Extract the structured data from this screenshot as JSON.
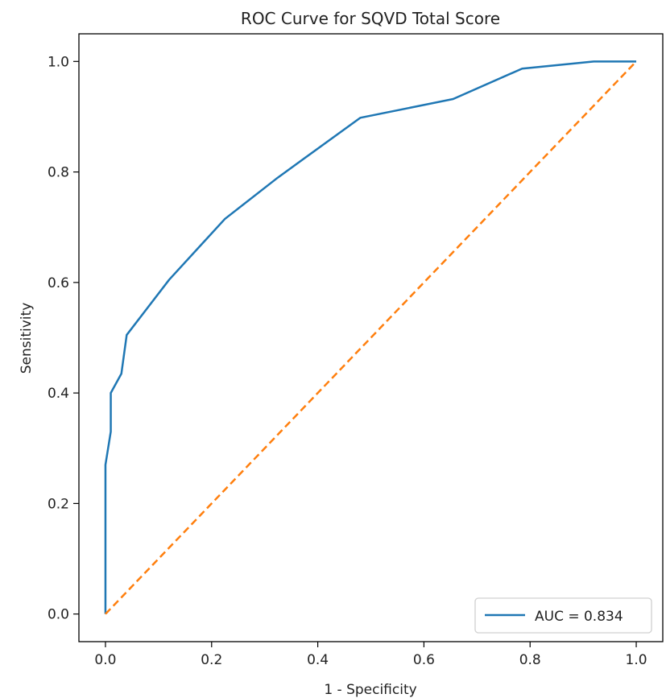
{
  "chart_data": {
    "type": "line",
    "title": "ROC Curve for SQVD Total Score",
    "xlabel": "1 - Specificity",
    "ylabel": "Sensitivity",
    "xlim": [
      -0.05,
      1.05
    ],
    "ylim": [
      -0.05,
      1.05
    ],
    "xticks": [
      0.0,
      0.2,
      0.4,
      0.6,
      0.8,
      1.0
    ],
    "xtick_labels": [
      "0.0",
      "0.2",
      "0.4",
      "0.6",
      "0.8",
      "1.0"
    ],
    "yticks": [
      0.0,
      0.2,
      0.4,
      0.6,
      0.8,
      1.0
    ],
    "ytick_labels": [
      "0.0",
      "0.2",
      "0.4",
      "0.6",
      "0.8",
      "1.0"
    ],
    "grid": false,
    "legend_position": "lower-right",
    "series": [
      {
        "name": "AUC = 0.834",
        "style": "solid",
        "color": "#1f77b4",
        "x": [
          0.0,
          0.0,
          0.0,
          0.01,
          0.01,
          0.03,
          0.04,
          0.12,
          0.225,
          0.325,
          0.48,
          0.655,
          0.785,
          0.92,
          1.0
        ],
        "y": [
          0.0,
          0.27,
          0.27,
          0.33,
          0.4,
          0.435,
          0.505,
          0.605,
          0.715,
          0.79,
          0.898,
          0.932,
          0.987,
          1.0,
          1.0
        ]
      },
      {
        "style": "dashed",
        "color": "#ff7f0e",
        "x": [
          0.0,
          1.0
        ],
        "y": [
          0.0,
          1.0
        ]
      }
    ]
  }
}
